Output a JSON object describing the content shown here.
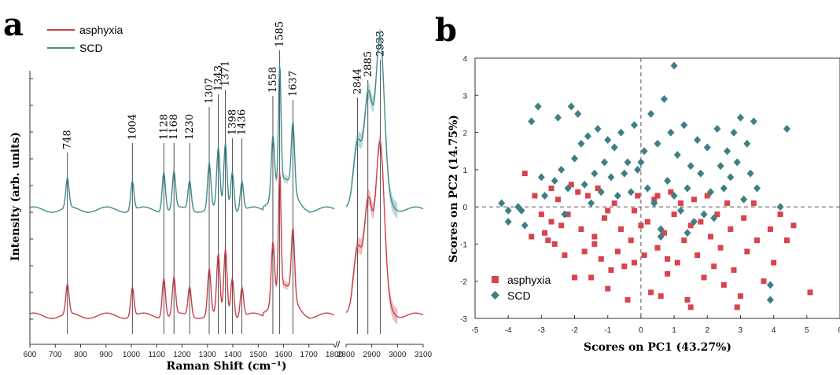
{
  "colors": {
    "asphyxia": "#c9404a",
    "scd": "#3f8c8e"
  },
  "chart_data": [
    {
      "panel": "a",
      "type": "line",
      "xlabel": "Raman Shift (cm⁻¹)",
      "ylabel": "Intensity (arb. units)",
      "legend_position": "top-left",
      "grid": false,
      "xlim_left": [
        600,
        1800
      ],
      "xlim_right": [
        2800,
        3100
      ],
      "xticks_left": [
        600,
        700,
        800,
        900,
        1000,
        1100,
        1200,
        1300,
        1400,
        1500,
        1600,
        1700,
        1800
      ],
      "xticks_right": [
        2800,
        2900,
        3000,
        3100
      ],
      "series": [
        {
          "name": "asphyxia",
          "color": "#c9404a"
        },
        {
          "name": "SCD",
          "color": "#3f8c8e"
        }
      ],
      "peaks": [
        {
          "label": "748",
          "x": 748
        },
        {
          "label": "1004",
          "x": 1004
        },
        {
          "label": "1128",
          "x": 1128
        },
        {
          "label": "1168",
          "x": 1168
        },
        {
          "label": "1230",
          "x": 1230
        },
        {
          "label": "1307",
          "x": 1307
        },
        {
          "label": "1343",
          "x": 1343
        },
        {
          "label": "1371",
          "x": 1371
        },
        {
          "label": "1398",
          "x": 1398
        },
        {
          "label": "1436",
          "x": 1436
        },
        {
          "label": "1558",
          "x": 1558
        },
        {
          "label": "1585",
          "x": 1585
        },
        {
          "label": "1637",
          "x": 1637
        },
        {
          "label": "2844",
          "x": 2844
        },
        {
          "label": "2885",
          "x": 2885
        },
        {
          "label": "2933",
          "x": 2933
        }
      ]
    },
    {
      "panel": "b",
      "type": "scatter",
      "xlabel": "Scores on PC1 (43.27%)",
      "ylabel": "Scores on PC2 (14.75%)",
      "xlim": [
        -5,
        6
      ],
      "ylim": [
        -3,
        4
      ],
      "xticks": [
        -5,
        -4,
        -3,
        -2,
        -1,
        0,
        1,
        2,
        3,
        4,
        5,
        6
      ],
      "yticks": [
        -3,
        -2,
        -1,
        0,
        1,
        2,
        3,
        4
      ],
      "legend_position": "bottom-left",
      "reference_lines": {
        "x": 0,
        "y": 0
      },
      "series": [
        {
          "name": "asphyxia",
          "marker": "square",
          "color": "#d9434d",
          "points": [
            [
              -3.5,
              0.9
            ],
            [
              -3.2,
              0.3
            ],
            [
              -3.0,
              -0.2
            ],
            [
              -2.9,
              -0.7
            ],
            [
              -2.8,
              -0.9
            ],
            [
              -2.7,
              -0.4
            ],
            [
              -2.6,
              -1.0
            ],
            [
              -2.5,
              0.2
            ],
            [
              -2.4,
              -0.5
            ],
            [
              -2.3,
              -1.3
            ],
            [
              -2.2,
              -0.2
            ],
            [
              -2.1,
              0.6
            ],
            [
              -2.0,
              -1.9
            ],
            [
              -1.9,
              0.4
            ],
            [
              -1.8,
              -0.6
            ],
            [
              -1.7,
              -1.2
            ],
            [
              -1.6,
              0.3
            ],
            [
              -1.5,
              -1.9
            ],
            [
              -1.4,
              -0.8
            ],
            [
              -1.3,
              0.5
            ],
            [
              -1.2,
              -1.4
            ],
            [
              -1.1,
              -0.3
            ],
            [
              -1.0,
              -2.2
            ],
            [
              -0.9,
              -1.7
            ],
            [
              -0.8,
              0.1
            ],
            [
              -0.7,
              -1.2
            ],
            [
              -0.6,
              -0.6
            ],
            [
              -0.5,
              -1.6
            ],
            [
              -0.4,
              -2.5
            ],
            [
              -0.3,
              -0.9
            ],
            [
              -0.2,
              -1.5
            ],
            [
              -0.1,
              0.3
            ],
            [
              0.1,
              -1.3
            ],
            [
              0.2,
              -0.4
            ],
            [
              0.3,
              -2.3
            ],
            [
              0.4,
              0.2
            ],
            [
              0.5,
              -1.1
            ],
            [
              0.6,
              -2.4
            ],
            [
              0.7,
              -0.7
            ],
            [
              0.8,
              -1.8
            ],
            [
              0.9,
              0.4
            ],
            [
              1.0,
              -0.2
            ],
            [
              1.1,
              -1.5
            ],
            [
              1.2,
              0.1
            ],
            [
              1.3,
              -0.9
            ],
            [
              1.4,
              -2.5
            ],
            [
              1.5,
              -0.5
            ],
            [
              1.6,
              0.2
            ],
            [
              1.7,
              -1.3
            ],
            [
              1.8,
              -0.4
            ],
            [
              1.9,
              -1.9
            ],
            [
              2.0,
              0.3
            ],
            [
              2.1,
              -0.8
            ],
            [
              2.2,
              -1.6
            ],
            [
              2.3,
              -0.2
            ],
            [
              2.4,
              -1.1
            ],
            [
              2.5,
              -2.1
            ],
            [
              2.6,
              0.1
            ],
            [
              2.7,
              -0.6
            ],
            [
              2.8,
              -1.7
            ],
            [
              3.0,
              -2.4
            ],
            [
              3.1,
              -0.3
            ],
            [
              3.2,
              -1.2
            ],
            [
              3.4,
              0.1
            ],
            [
              3.5,
              -0.9
            ],
            [
              3.7,
              -2.0
            ],
            [
              3.9,
              -0.6
            ],
            [
              4.0,
              -1.5
            ],
            [
              4.2,
              -0.2
            ],
            [
              4.4,
              -0.9
            ],
            [
              4.6,
              -0.5
            ],
            [
              5.1,
              -2.3
            ],
            [
              -3.3,
              -0.8
            ],
            [
              -2.7,
              0.5
            ],
            [
              -1.0,
              -0.1
            ],
            [
              0.0,
              -0.5
            ],
            [
              0.5,
              0.3
            ],
            [
              1.5,
              -2.7
            ],
            [
              2.9,
              -2.7
            ],
            [
              -0.2,
              -0.1
            ],
            [
              -1.4,
              -1.0
            ],
            [
              0.8,
              -1.4
            ]
          ]
        },
        {
          "name": "SCD",
          "marker": "diamond",
          "color": "#3d7f83",
          "points": [
            [
              -4.2,
              0.1
            ],
            [
              -4.0,
              -0.1
            ],
            [
              -3.7,
              0.0
            ],
            [
              -3.5,
              -0.5
            ],
            [
              -3.3,
              2.3
            ],
            [
              -3.1,
              2.7
            ],
            [
              -3.0,
              0.8
            ],
            [
              -2.9,
              0.3
            ],
            [
              -2.6,
              0.7
            ],
            [
              -2.5,
              2.4
            ],
            [
              -2.3,
              -0.2
            ],
            [
              -2.2,
              0.5
            ],
            [
              -2.1,
              2.7
            ],
            [
              -2.0,
              1.3
            ],
            [
              -1.9,
              2.5
            ],
            [
              -1.8,
              1.7
            ],
            [
              -1.7,
              0.6
            ],
            [
              -1.6,
              1.9
            ],
            [
              -1.5,
              0.1
            ],
            [
              -1.4,
              0.9
            ],
            [
              -1.3,
              2.1
            ],
            [
              -1.2,
              0.4
            ],
            [
              -1.1,
              1.2
            ],
            [
              -1.0,
              1.8
            ],
            [
              -0.9,
              0.8
            ],
            [
              -0.8,
              1.6
            ],
            [
              -0.7,
              0.3
            ],
            [
              -0.6,
              2.0
            ],
            [
              -0.5,
              0.9
            ],
            [
              -0.4,
              1.2
            ],
            [
              -0.3,
              0.4
            ],
            [
              -0.2,
              2.2
            ],
            [
              -0.1,
              1.0
            ],
            [
              0.1,
              1.5
            ],
            [
              0.2,
              0.5
            ],
            [
              0.3,
              2.5
            ],
            [
              0.4,
              0.1
            ],
            [
              0.5,
              1.7
            ],
            [
              0.6,
              -0.6
            ],
            [
              0.7,
              2.9
            ],
            [
              0.8,
              0.7
            ],
            [
              0.9,
              2.0
            ],
            [
              1.0,
              0.3
            ],
            [
              1.0,
              3.8
            ],
            [
              1.1,
              1.4
            ],
            [
              1.2,
              -0.1
            ],
            [
              1.3,
              2.2
            ],
            [
              1.4,
              0.5
            ],
            [
              1.5,
              1.1
            ],
            [
              1.6,
              -0.4
            ],
            [
              1.7,
              1.8
            ],
            [
              1.8,
              0.9
            ],
            [
              1.9,
              -0.2
            ],
            [
              2.0,
              1.6
            ],
            [
              2.1,
              0.4
            ],
            [
              2.2,
              -0.3
            ],
            [
              2.3,
              2.1
            ],
            [
              2.4,
              1.1
            ],
            [
              2.5,
              0.5
            ],
            [
              2.6,
              1.5
            ],
            [
              2.7,
              0.8
            ],
            [
              2.8,
              2.0
            ],
            [
              2.9,
              1.2
            ],
            [
              3.0,
              2.4
            ],
            [
              3.1,
              0.2
            ],
            [
              3.2,
              1.7
            ],
            [
              3.3,
              0.9
            ],
            [
              3.4,
              2.3
            ],
            [
              3.5,
              0.5
            ],
            [
              4.2,
              0.0
            ],
            [
              4.4,
              2.1
            ],
            [
              3.9,
              -2.1
            ],
            [
              3.9,
              -2.5
            ],
            [
              -2.4,
              1.0
            ],
            [
              0.0,
              1.2
            ],
            [
              0.6,
              -0.8
            ],
            [
              -4.0,
              -0.4
            ],
            [
              -3.6,
              -0.1
            ],
            [
              1.4,
              -0.7
            ]
          ]
        }
      ]
    }
  ],
  "labels": {
    "panel_a": "a",
    "panel_b": "b",
    "legend_a": [
      "asphyxia",
      "SCD"
    ],
    "legend_b": [
      "asphyxia",
      "SCD"
    ]
  }
}
